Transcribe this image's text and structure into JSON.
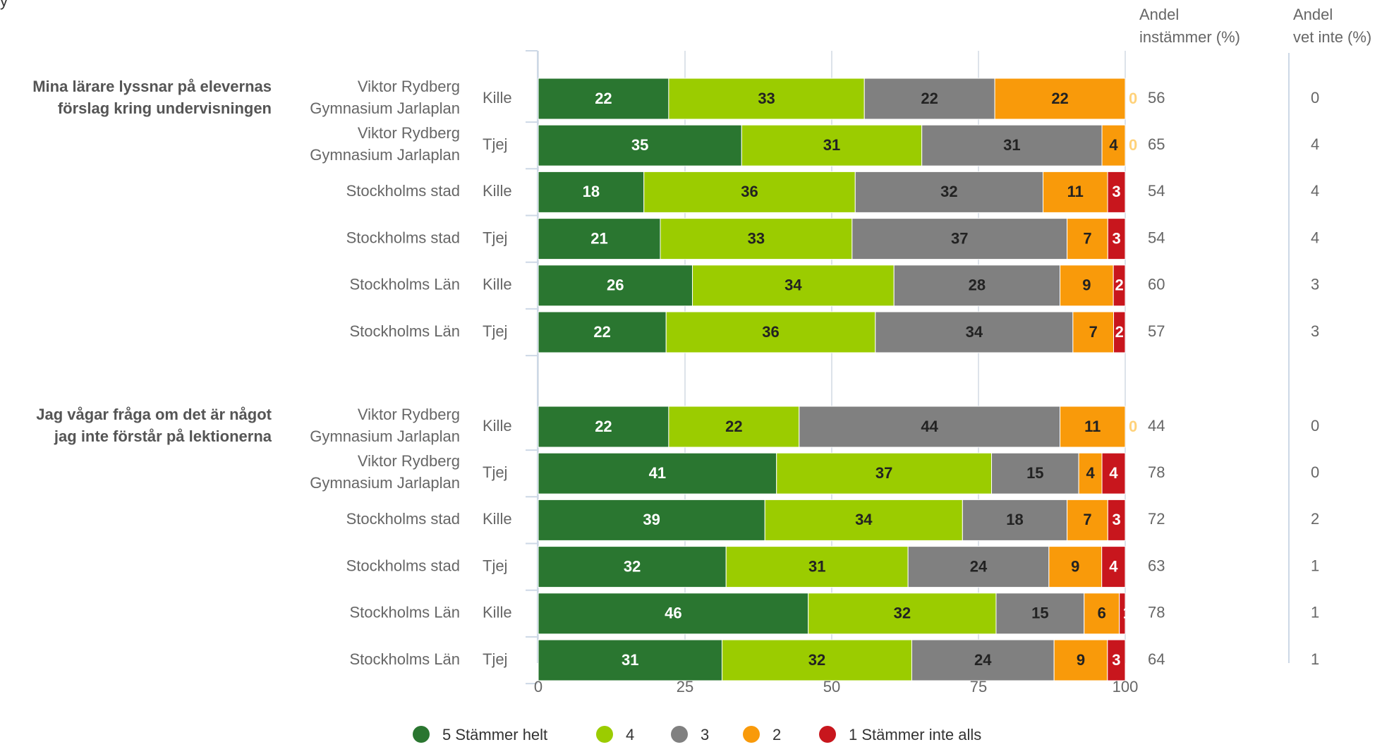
{
  "title_fragment": "y",
  "header": {
    "instammer": [
      "Andel",
      "instämmer (%)"
    ],
    "vet_inte": [
      "Andel",
      "vet inte (%)"
    ]
  },
  "chart_data": {
    "type": "bar",
    "orientation": "horizontal",
    "stacked": true,
    "xlim": [
      0,
      100
    ],
    "xticks": [
      0,
      25,
      50,
      75,
      100
    ],
    "grid": true,
    "legend_placement": "bottom",
    "legend": [
      {
        "label": "5 Stämmer helt",
        "color": "#2a7630"
      },
      {
        "label": "4",
        "color": "#9bcc00"
      },
      {
        "label": "3",
        "color": "#808080"
      },
      {
        "label": "2",
        "color": "#f99a0a"
      },
      {
        "label": "1 Stämmer inte alls",
        "color": "#c8161d"
      }
    ],
    "groups": [
      {
        "question": [
          "Mina lärare lyssnar på elevernas",
          "förslag kring undervisningen"
        ],
        "rows": [
          {
            "unit": [
              "Viktor Rydberg",
              "Gymnasium Jarlaplan"
            ],
            "gender": "Kille",
            "values": [
              22,
              33,
              22,
              22,
              0
            ],
            "instammer": 56,
            "vet_inte": 0
          },
          {
            "unit": [
              "Viktor Rydberg",
              "Gymnasium Jarlaplan"
            ],
            "gender": "Tjej",
            "values": [
              35,
              31,
              31,
              4,
              0
            ],
            "instammer": 65,
            "vet_inte": 4
          },
          {
            "unit": [
              "Stockholms stad"
            ],
            "gender": "Kille",
            "values": [
              18,
              36,
              32,
              11,
              3
            ],
            "instammer": 54,
            "vet_inte": 4
          },
          {
            "unit": [
              "Stockholms stad"
            ],
            "gender": "Tjej",
            "values": [
              21,
              33,
              37,
              7,
              3
            ],
            "instammer": 54,
            "vet_inte": 4
          },
          {
            "unit": [
              "Stockholms Län"
            ],
            "gender": "Kille",
            "values": [
              26,
              34,
              28,
              9,
              2
            ],
            "instammer": 60,
            "vet_inte": 3
          },
          {
            "unit": [
              "Stockholms Län"
            ],
            "gender": "Tjej",
            "values": [
              22,
              36,
              34,
              7,
              2
            ],
            "instammer": 57,
            "vet_inte": 3
          }
        ]
      },
      {
        "question": [
          "Jag vågar fråga om det är något",
          "jag inte förstår på lektionerna"
        ],
        "rows": [
          {
            "unit": [
              "Viktor Rydberg",
              "Gymnasium Jarlaplan"
            ],
            "gender": "Kille",
            "values": [
              22,
              22,
              44,
              11,
              0
            ],
            "instammer": 44,
            "vet_inte": 0
          },
          {
            "unit": [
              "Viktor Rydberg",
              "Gymnasium Jarlaplan"
            ],
            "gender": "Tjej",
            "values": [
              41,
              37,
              15,
              4,
              4
            ],
            "instammer": 78,
            "vet_inte": 0
          },
          {
            "unit": [
              "Stockholms stad"
            ],
            "gender": "Kille",
            "values": [
              39,
              34,
              18,
              7,
              3
            ],
            "instammer": 72,
            "vet_inte": 2
          },
          {
            "unit": [
              "Stockholms stad"
            ],
            "gender": "Tjej",
            "values": [
              32,
              31,
              24,
              9,
              4
            ],
            "instammer": 63,
            "vet_inte": 1
          },
          {
            "unit": [
              "Stockholms Län"
            ],
            "gender": "Kille",
            "values": [
              46,
              32,
              15,
              6,
              1
            ],
            "instammer": 78,
            "vet_inte": 1
          },
          {
            "unit": [
              "Stockholms Län"
            ],
            "gender": "Tjej",
            "values": [
              31,
              32,
              24,
              9,
              3
            ],
            "instammer": 64,
            "vet_inte": 1
          }
        ]
      }
    ]
  }
}
